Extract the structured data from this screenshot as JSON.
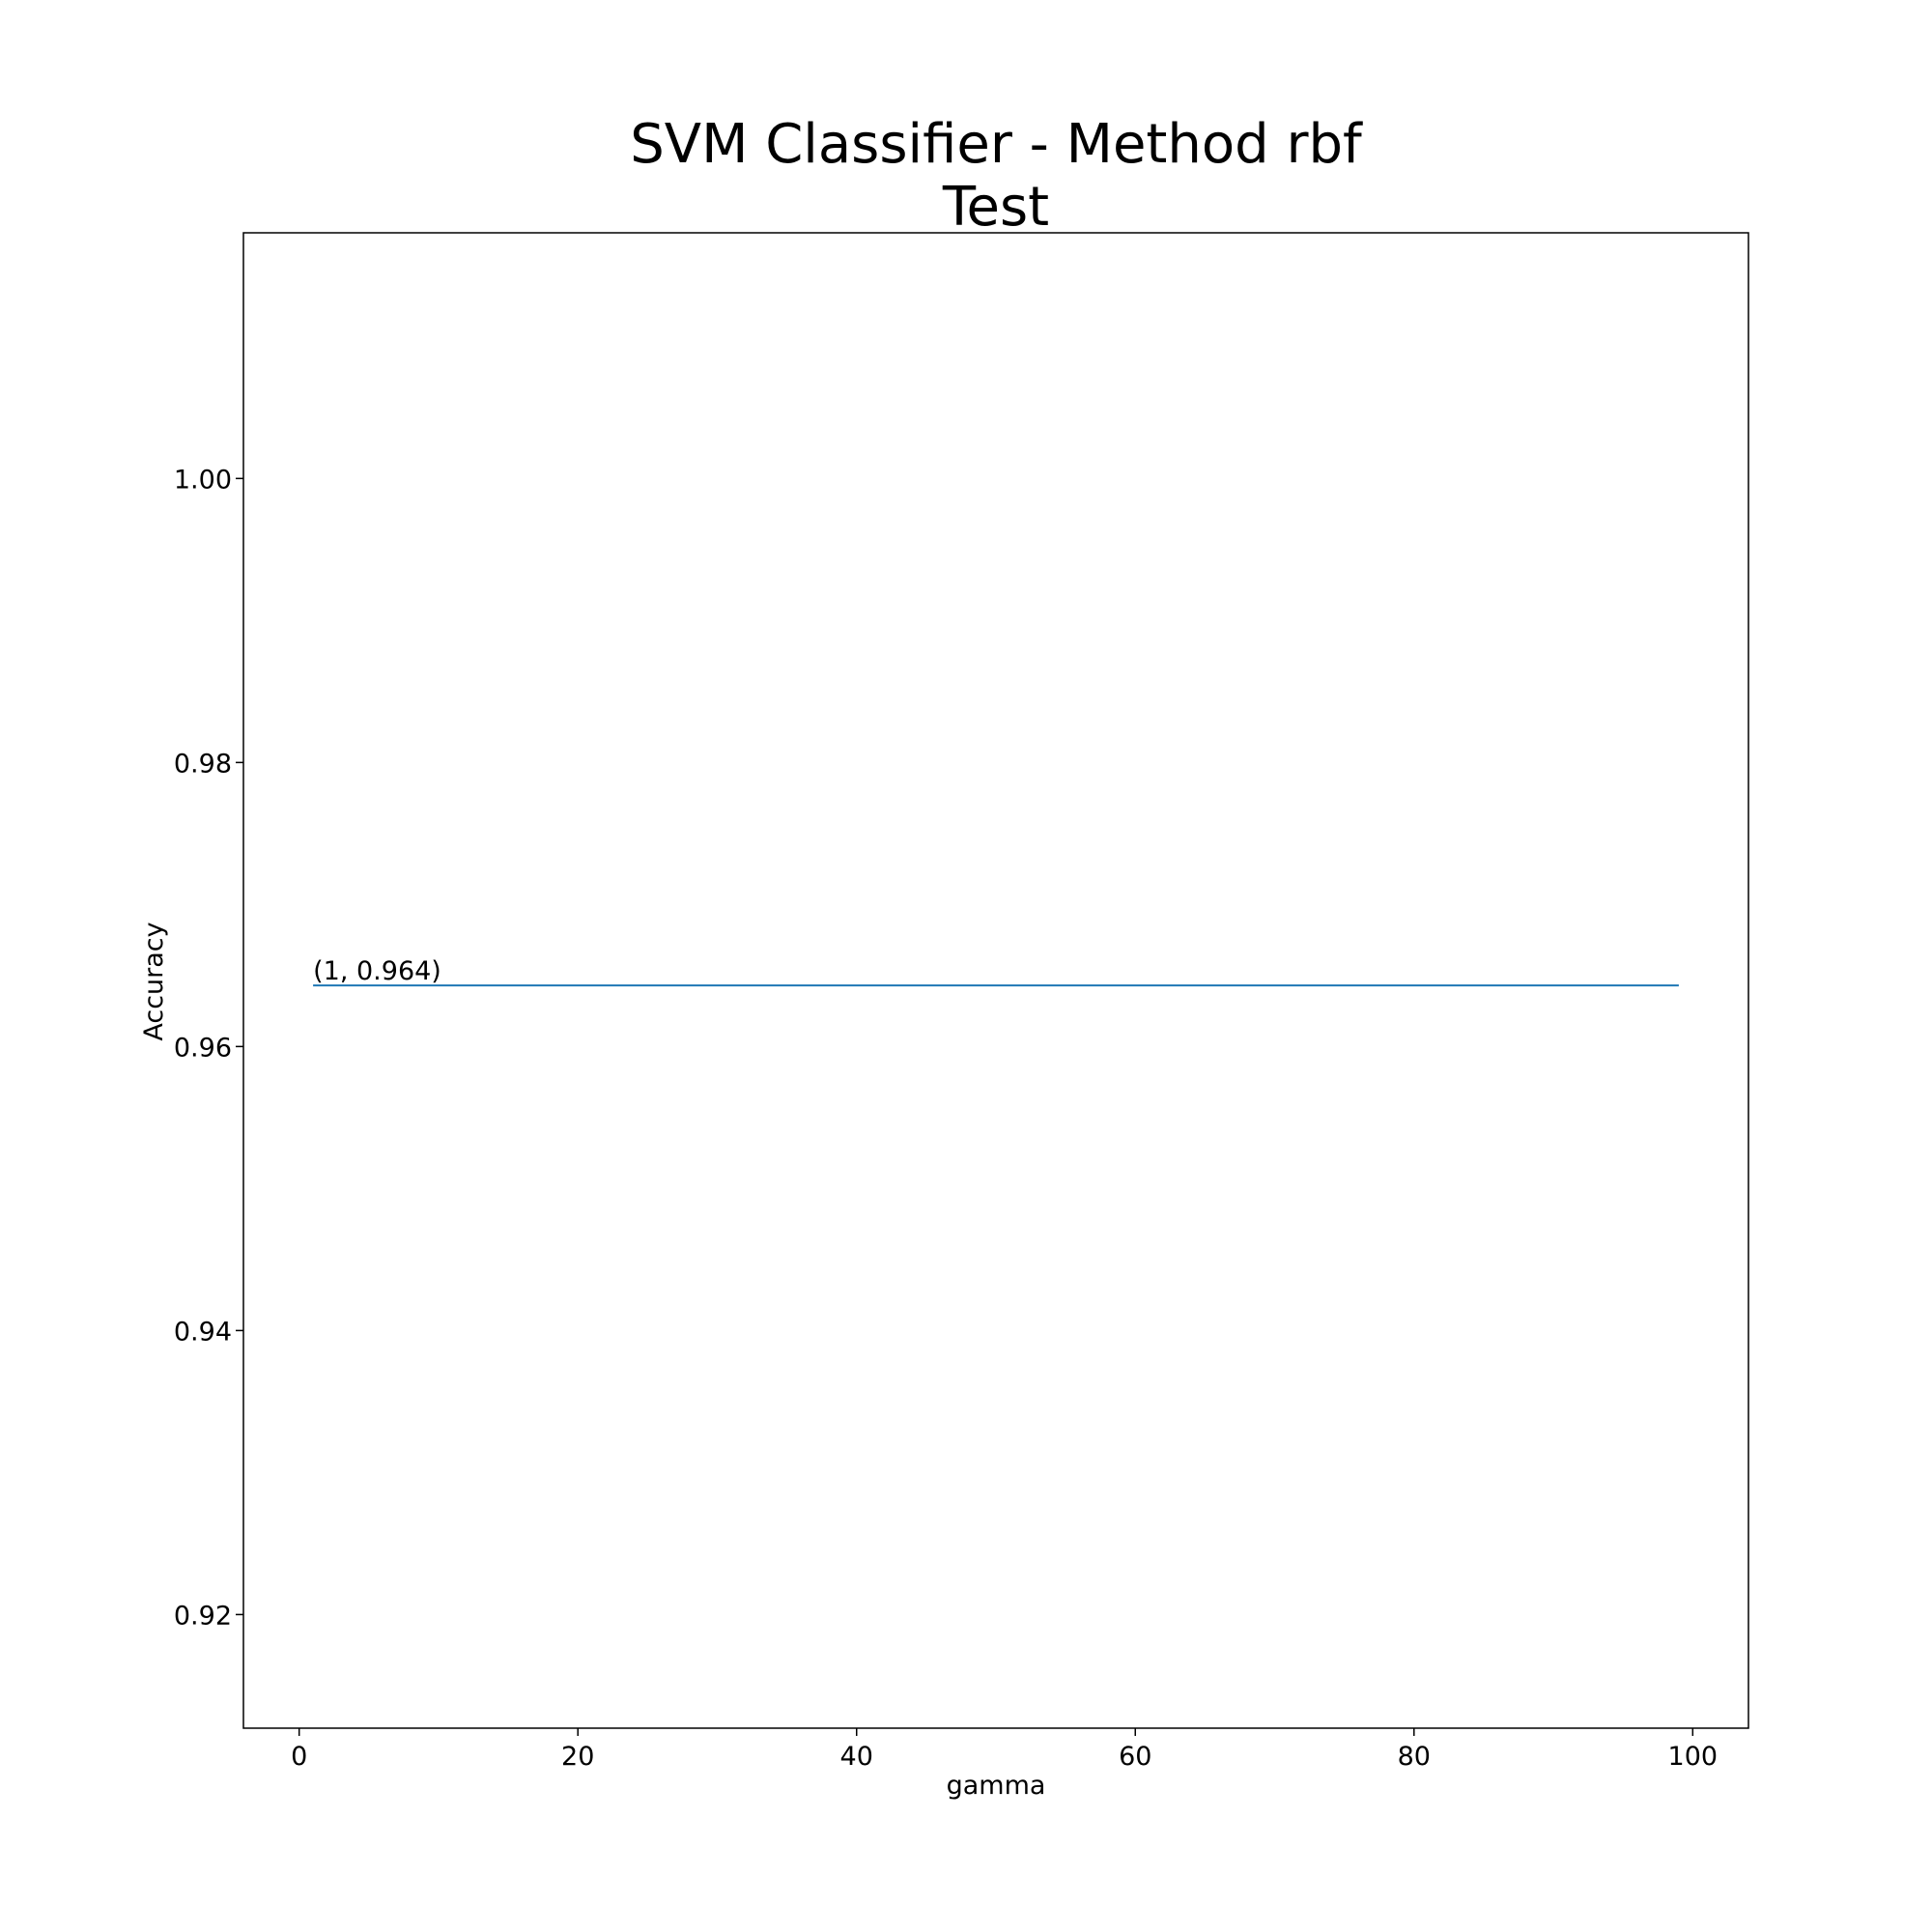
{
  "chart_data": {
    "type": "line",
    "title": [
      "SVM Classifier - Method rbf",
      "Test"
    ],
    "xlabel": "gamma",
    "ylabel": "Accuracy",
    "xlim": [
      -4,
      104
    ],
    "ylim": [
      0.912,
      1.0173
    ],
    "xticks": [
      0,
      20,
      40,
      60,
      80,
      100
    ],
    "xtick_labels": [
      "0",
      "20",
      "40",
      "60",
      "80",
      "100"
    ],
    "yticks": [
      0.92,
      0.94,
      0.96,
      0.98,
      1.0
    ],
    "ytick_labels": [
      "0.92",
      "0.94",
      "0.96",
      "0.98",
      "1.00"
    ],
    "grid": false,
    "legend": "none",
    "series": [
      {
        "color": "#1f77b4",
        "x": [
          1,
          99
        ],
        "y": [
          0.9643,
          0.9643
        ]
      }
    ],
    "annotations": [
      {
        "text": "(1, 0.964)",
        "x": 1,
        "y": 0.9643
      }
    ]
  }
}
